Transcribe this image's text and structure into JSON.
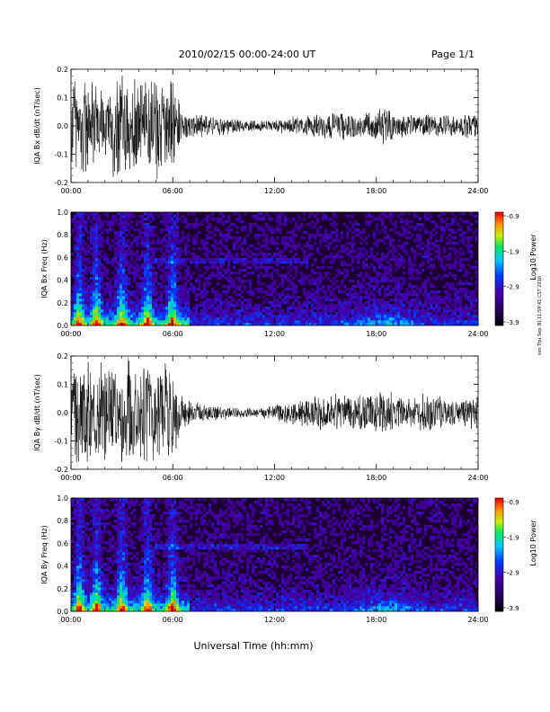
{
  "header": {
    "title": "2010/02/15  00:00-24:00 UT",
    "page": "Page 1/1"
  },
  "footer": {
    "xlabel": "Universal Time (hh:mm)",
    "stamp": "ssn Thu Sep 30 11:59:41 CST 2010"
  },
  "chart_data": [
    {
      "type": "line",
      "ylabel": "IQA Bx dB/dt (nT/sec)",
      "x_ticks": [
        "00:00",
        "06:00",
        "12:00",
        "18:00",
        "24:00"
      ],
      "x_range_hours": [
        0,
        24
      ],
      "ylim": [
        -0.2,
        0.2
      ],
      "y_ticks": [
        "0.2",
        "0.1",
        "0.0",
        "-0.1",
        "-0.2"
      ],
      "envelope": {
        "hours": [
          0,
          1,
          1.5,
          2,
          2.5,
          3,
          3.5,
          4,
          4.5,
          5,
          5.5,
          6,
          6.5,
          7,
          8,
          9,
          10,
          11,
          12,
          13,
          14,
          15,
          16,
          17,
          18,
          18.5,
          19,
          20,
          21,
          22,
          23,
          24
        ],
        "amplitude": [
          0.2,
          0.2,
          0.18,
          0.12,
          0.2,
          0.2,
          0.2,
          0.2,
          0.2,
          0.2,
          0.16,
          0.2,
          0.06,
          0.05,
          0.04,
          0.035,
          0.025,
          0.02,
          0.025,
          0.035,
          0.04,
          0.05,
          0.055,
          0.045,
          0.06,
          0.08,
          0.05,
          0.04,
          0.045,
          0.04,
          0.04,
          0.06
        ]
      }
    },
    {
      "type": "heatmap",
      "ylabel": "IQA Bx Freq (Hz)",
      "x_ticks": [
        "00:00",
        "06:00",
        "12:00",
        "18:00",
        "24:00"
      ],
      "x_range_hours": [
        0,
        24
      ],
      "ylim": [
        0.0,
        1.0
      ],
      "y_ticks": [
        "1.0",
        "0.8",
        "0.6",
        "0.4",
        "0.2",
        "0.0"
      ],
      "colorbar": {
        "label": "Log10 Power",
        "ticks": [
          "-0.9",
          "-1.9",
          "-2.9",
          "-3.9"
        ],
        "range": [
          -3.9,
          -0.9
        ]
      },
      "bursts_hours": [
        0.5,
        1.5,
        3.0,
        4.5,
        6.0
      ],
      "band_hours": [
        15,
        21
      ]
    },
    {
      "type": "line",
      "ylabel": "IQA By dB/dt (nT/sec)",
      "x_ticks": [
        "00:00",
        "06:00",
        "12:00",
        "18:00",
        "24:00"
      ],
      "x_range_hours": [
        0,
        24
      ],
      "ylim": [
        -0.2,
        0.2
      ],
      "y_ticks": [
        "0.2",
        "0.1",
        "0.0",
        "-0.1",
        "-0.2"
      ],
      "envelope": {
        "hours": [
          0,
          1,
          1.5,
          2,
          2.5,
          3,
          3.5,
          4,
          4.5,
          5,
          5.5,
          6,
          6.5,
          7,
          8,
          9,
          10,
          11,
          12,
          13,
          14,
          15,
          16,
          17,
          18,
          18.5,
          19,
          20,
          21,
          22,
          23,
          24
        ],
        "amplitude": [
          0.2,
          0.2,
          0.2,
          0.2,
          0.2,
          0.2,
          0.2,
          0.2,
          0.2,
          0.2,
          0.2,
          0.2,
          0.07,
          0.05,
          0.03,
          0.025,
          0.02,
          0.02,
          0.03,
          0.05,
          0.06,
          0.07,
          0.08,
          0.07,
          0.08,
          0.1,
          0.07,
          0.06,
          0.07,
          0.06,
          0.05,
          0.07
        ]
      }
    },
    {
      "type": "heatmap",
      "ylabel": "IQA By Freq (Hz)",
      "x_ticks": [
        "00:00",
        "06:00",
        "12:00",
        "18:00",
        "24:00"
      ],
      "x_range_hours": [
        0,
        24
      ],
      "ylim": [
        0.0,
        1.0
      ],
      "y_ticks": [
        "1.0",
        "0.8",
        "0.6",
        "0.4",
        "0.2",
        "0.0"
      ],
      "colorbar": {
        "label": "Log10 Power",
        "ticks": [
          "-0.9",
          "-1.9",
          "-2.9",
          "-3.9"
        ],
        "range": [
          -3.9,
          -0.9
        ]
      },
      "bursts_hours": [
        0.5,
        1.5,
        3.0,
        4.5,
        6.0
      ],
      "band_hours": [
        15,
        21
      ]
    }
  ]
}
